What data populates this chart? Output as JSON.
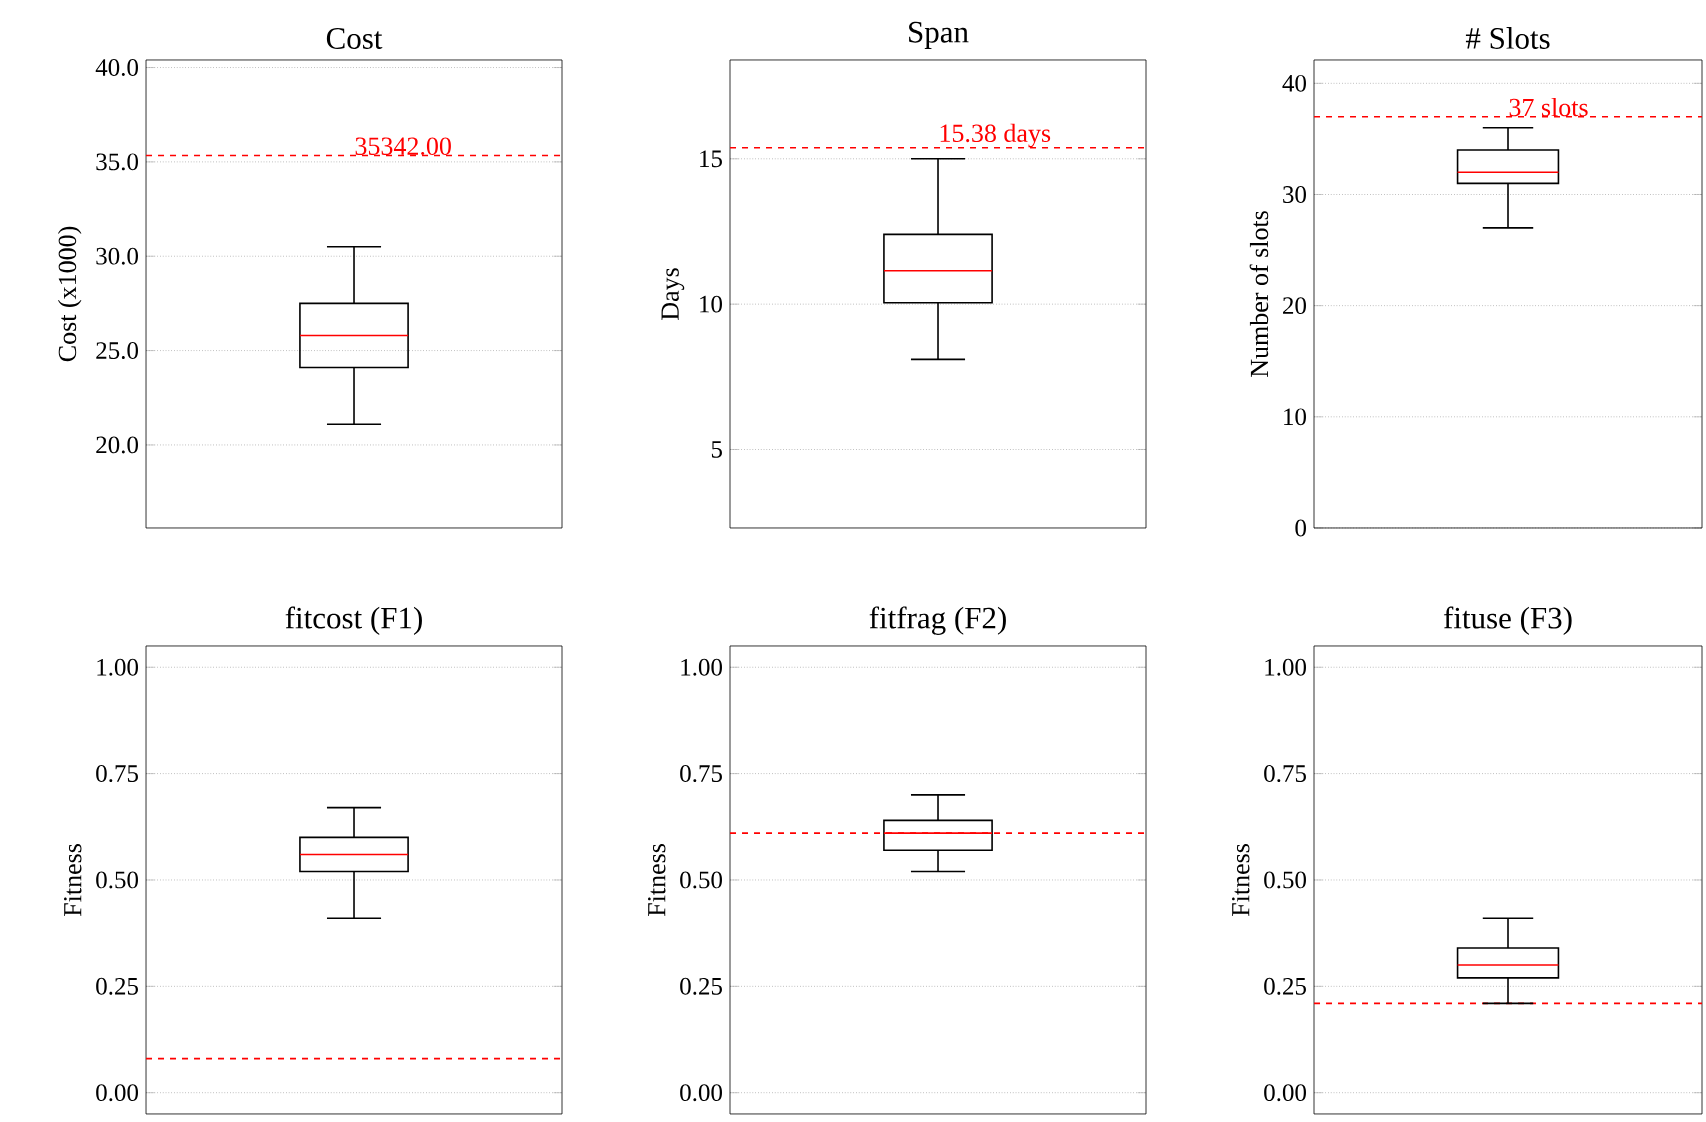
{
  "chart_data": [
    {
      "type": "box",
      "title": "Cost",
      "ylabel": "Cost (x1000)",
      "categories": [
        null
      ],
      "boxes": [
        {
          "low": 21.1,
          "q1": 24.1,
          "median": 25.8,
          "q3": 27.5,
          "high": 30.5
        }
      ],
      "ylim": [
        15.6,
        40.4
      ],
      "yticks": [
        {
          "value": 20,
          "label": "20.0"
        },
        {
          "value": 25,
          "label": "25.0"
        },
        {
          "value": 30,
          "label": "30.0"
        },
        {
          "value": 35,
          "label": "35.0"
        },
        {
          "value": 40,
          "label": "40.0"
        }
      ],
      "grid": "y",
      "tick_labels": "y",
      "ref_lines": [
        {
          "axis": "y",
          "value": 35.342,
          "label": "35342.00",
          "color": "#ff0000",
          "line_style": "dashed"
        }
      ]
    },
    {
      "type": "box",
      "title": "Span",
      "ylabel": "Days",
      "categories": [
        null
      ],
      "boxes": [
        {
          "low": 8.1,
          "q1": 10.05,
          "median": 11.15,
          "q3": 12.4,
          "high": 15.0
        }
      ],
      "ylim": [
        2.3,
        18.4
      ],
      "yticks": [
        5,
        10,
        15
      ],
      "grid": "y",
      "tick_labels": "y",
      "ref_lines": [
        {
          "axis": "y",
          "value": 15.38,
          "label": "15.38 days",
          "color": "#ff0000",
          "line_style": "dashed"
        }
      ]
    },
    {
      "type": "box",
      "title": "# Slots",
      "ylabel": "Number of slots",
      "categories": [
        null
      ],
      "boxes": [
        {
          "low": 27,
          "q1": 31,
          "median": 32,
          "q3": 34,
          "high": 36
        }
      ],
      "ylim": [
        0,
        42.1
      ],
      "yticks": [
        0,
        10,
        20,
        30,
        40
      ],
      "grid": "y",
      "tick_labels": "y",
      "ref_lines": [
        {
          "axis": "y",
          "value": 37,
          "label": "37 slots",
          "color": "#ff0000",
          "line_style": "dashed"
        }
      ]
    },
    {
      "type": "box",
      "title": "fitcost (F1)",
      "ylabel": "Fitness",
      "categories": [
        null
      ],
      "boxes": [
        {
          "low": 0.41,
          "q1": 0.52,
          "median": 0.56,
          "q3": 0.6,
          "high": 0.67
        }
      ],
      "ylim": [
        -0.05,
        1.05
      ],
      "yticks": [
        {
          "value": 0,
          "label": "0.00"
        },
        {
          "value": 0.25,
          "label": "0.25"
        },
        {
          "value": 0.5,
          "label": "0.50"
        },
        {
          "value": 0.75,
          "label": "0.75"
        },
        {
          "value": 1,
          "label": "1.00"
        }
      ],
      "grid": "y",
      "tick_labels": "y",
      "ref_lines": [
        {
          "axis": "y",
          "value": 0.08,
          "color": "#ff0000",
          "line_style": "dashed"
        }
      ]
    },
    {
      "type": "box",
      "title": "fitfrag (F2)",
      "ylabel": "Fitness",
      "categories": [
        null
      ],
      "boxes": [
        {
          "low": 0.52,
          "q1": 0.57,
          "median": 0.61,
          "q3": 0.64,
          "high": 0.7
        }
      ],
      "ylim": [
        -0.05,
        1.05
      ],
      "yticks": [
        {
          "value": 0,
          "label": "0.00"
        },
        {
          "value": 0.25,
          "label": "0.25"
        },
        {
          "value": 0.5,
          "label": "0.50"
        },
        {
          "value": 0.75,
          "label": "0.75"
        },
        {
          "value": 1,
          "label": "1.00"
        }
      ],
      "grid": "y",
      "tick_labels": "y",
      "ref_lines": [
        {
          "axis": "y",
          "value": 0.61,
          "color": "#ff0000",
          "line_style": "dashed"
        }
      ]
    },
    {
      "type": "box",
      "title": "fituse (F3)",
      "ylabel": "Fitness",
      "categories": [
        null
      ],
      "boxes": [
        {
          "low": 0.21,
          "q1": 0.27,
          "median": 0.3,
          "q3": 0.34,
          "high": 0.41
        }
      ],
      "ylim": [
        -0.05,
        1.05
      ],
      "yticks": [
        {
          "value": 0,
          "label": "0.00"
        },
        {
          "value": 0.25,
          "label": "0.25"
        },
        {
          "value": 0.5,
          "label": "0.50"
        },
        {
          "value": 0.75,
          "label": "0.75"
        },
        {
          "value": 1,
          "label": "1.00"
        }
      ],
      "grid": "y",
      "tick_labels": "y",
      "ref_lines": [
        {
          "axis": "y",
          "value": 0.21,
          "color": "#ff0000",
          "line_style": "dashed"
        }
      ]
    }
  ]
}
